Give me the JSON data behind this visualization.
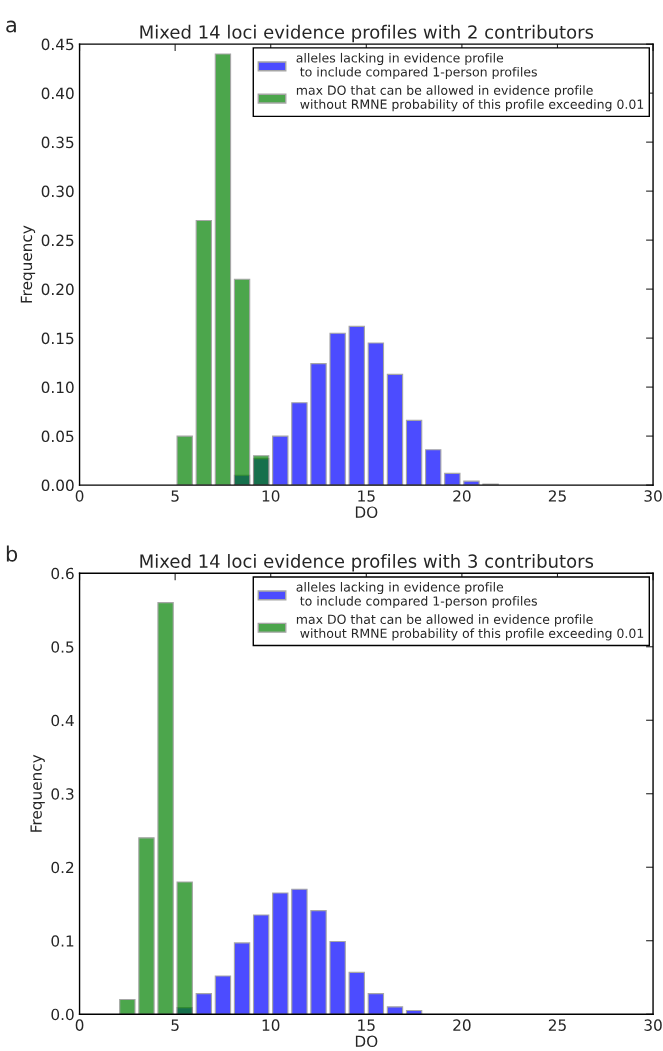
{
  "chart_data": [
    {
      "type": "histogram",
      "title": "Mixed 14 loci evidence profiles with 2 contributors",
      "xlabel": "DO",
      "ylabel": "Frequency",
      "annotations": [
        "a"
      ],
      "xlim": [
        0,
        30
      ],
      "xticks": [
        0,
        5,
        10,
        15,
        20,
        25,
        30
      ],
      "ylim": [
        0,
        0.45
      ],
      "yticks": [
        {
          "value": 0,
          "label": "0.00"
        },
        {
          "value": 0.05,
          "label": "0.05"
        },
        {
          "value": 0.1,
          "label": "0.10"
        },
        {
          "value": 0.15,
          "label": "0.15"
        },
        {
          "value": 0.2,
          "label": "0.20"
        },
        {
          "value": 0.25,
          "label": "0.25"
        },
        {
          "value": 0.3,
          "label": "0.30"
        },
        {
          "value": 0.35,
          "label": "0.35"
        },
        {
          "value": 0.4,
          "label": "0.40"
        },
        {
          "value": 0.45,
          "label": "0.45"
        }
      ],
      "legend": "top right",
      "grid": false,
      "bins": [
        0,
        1,
        2,
        3,
        4,
        5,
        6,
        7,
        8,
        9,
        10,
        11,
        12,
        13,
        14,
        15,
        16,
        17,
        18,
        19,
        20,
        21,
        22,
        23,
        24,
        25,
        26,
        27,
        28,
        29,
        30
      ],
      "series": [
        {
          "name": "alleles lacking in evidence profile\n to include compared 1-person profiles",
          "color": "#4d4dff",
          "values": [
            null,
            null,
            null,
            null,
            null,
            null,
            null,
            null,
            0.01,
            0.027,
            0.05,
            0.084,
            0.124,
            0.155,
            0.162,
            0.145,
            0.113,
            0.066,
            0.036,
            0.012,
            0.004,
            0.001,
            null,
            null,
            null,
            null,
            null,
            null,
            null,
            null
          ]
        },
        {
          "name": "max DO that can be allowed in evidence profile\n without RMNE probability of this profile exceeding 0.01",
          "color": "#4da64d",
          "values": [
            null,
            null,
            null,
            null,
            null,
            0.05,
            0.27,
            0.44,
            0.21,
            0.03,
            null,
            null,
            null,
            null,
            null,
            null,
            null,
            null,
            null,
            null,
            null,
            null,
            null,
            null,
            null,
            null,
            null,
            null,
            null,
            null
          ]
        }
      ]
    },
    {
      "type": "histogram",
      "title": "Mixed 14 loci evidence profiles with 3 contributors",
      "xlabel": "DO",
      "ylabel": "Frequency",
      "annotations": [
        "b"
      ],
      "xlim": [
        0,
        30
      ],
      "xticks": [
        0,
        5,
        10,
        15,
        20,
        25,
        30
      ],
      "ylim": [
        0,
        0.6
      ],
      "yticks": [
        {
          "value": 0,
          "label": "0.0"
        },
        {
          "value": 0.1,
          "label": "0.1"
        },
        {
          "value": 0.2,
          "label": "0.2"
        },
        {
          "value": 0.3,
          "label": "0.3"
        },
        {
          "value": 0.4,
          "label": "0.4"
        },
        {
          "value": 0.5,
          "label": "0.5"
        },
        {
          "value": 0.6,
          "label": "0.6"
        }
      ],
      "legend": "top right",
      "grid": false,
      "bins": [
        0,
        1,
        2,
        3,
        4,
        5,
        6,
        7,
        8,
        9,
        10,
        11,
        12,
        13,
        14,
        15,
        16,
        17,
        18,
        19,
        20,
        21,
        22,
        23,
        24,
        25,
        26,
        27,
        28,
        29,
        30
      ],
      "series": [
        {
          "name": "alleles lacking in evidence profile\n to include compared 1-person profiles",
          "color": "#4d4dff",
          "values": [
            null,
            null,
            null,
            null,
            null,
            0.009,
            0.028,
            0.052,
            0.097,
            0.135,
            0.165,
            0.17,
            0.141,
            0.099,
            0.057,
            0.028,
            0.01,
            0.005,
            null,
            null,
            null,
            null,
            null,
            null,
            null,
            null,
            null,
            null,
            null,
            null
          ]
        },
        {
          "name": "max DO that can be allowed in evidence profile\n without RMNE probability of this profile exceeding 0.01",
          "color": "#4da64d",
          "values": [
            null,
            null,
            0.02,
            0.24,
            0.56,
            0.18,
            null,
            null,
            null,
            null,
            null,
            null,
            null,
            null,
            null,
            null,
            null,
            null,
            null,
            null,
            null,
            null,
            null,
            null,
            null,
            null,
            null,
            null,
            null,
            null
          ]
        }
      ]
    }
  ]
}
